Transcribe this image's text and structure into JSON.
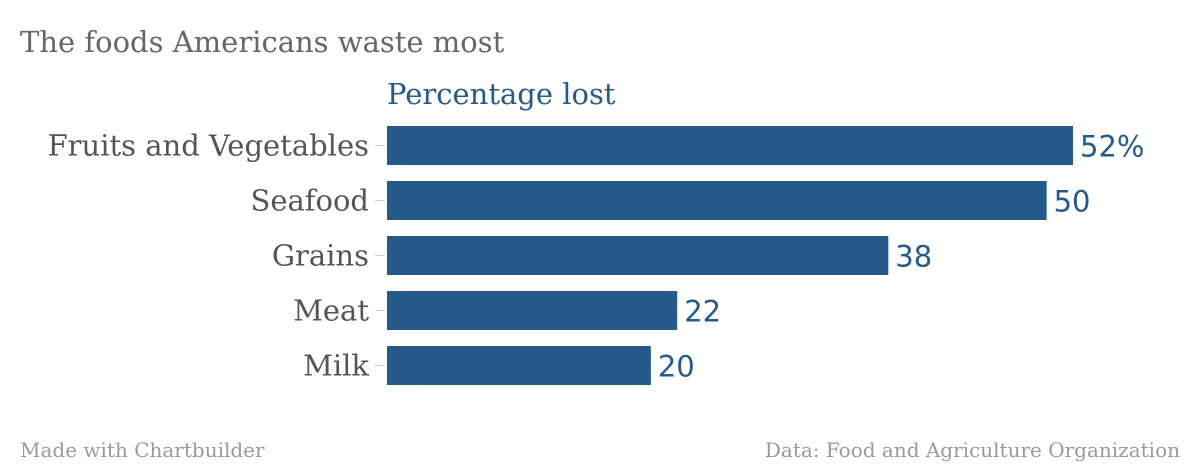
{
  "chart_data": {
    "type": "bar",
    "orientation": "horizontal",
    "title": "The foods Americans waste most",
    "categories": [
      "Fruits and Vegetables",
      "Seafood",
      "Grains",
      "Meat",
      "Milk"
    ],
    "series": [
      {
        "name": "Percentage lost",
        "values": [
          52,
          50,
          38,
          22,
          20
        ]
      }
    ],
    "value_labels": [
      "52%",
      "50",
      "38",
      "22",
      "20"
    ],
    "xlim": [
      0,
      52
    ],
    "grid": false,
    "bar_color": "#255a8a"
  },
  "footer": {
    "credit": "Made with Chartbuilder",
    "source": "Data: Food and Agriculture Organization"
  }
}
